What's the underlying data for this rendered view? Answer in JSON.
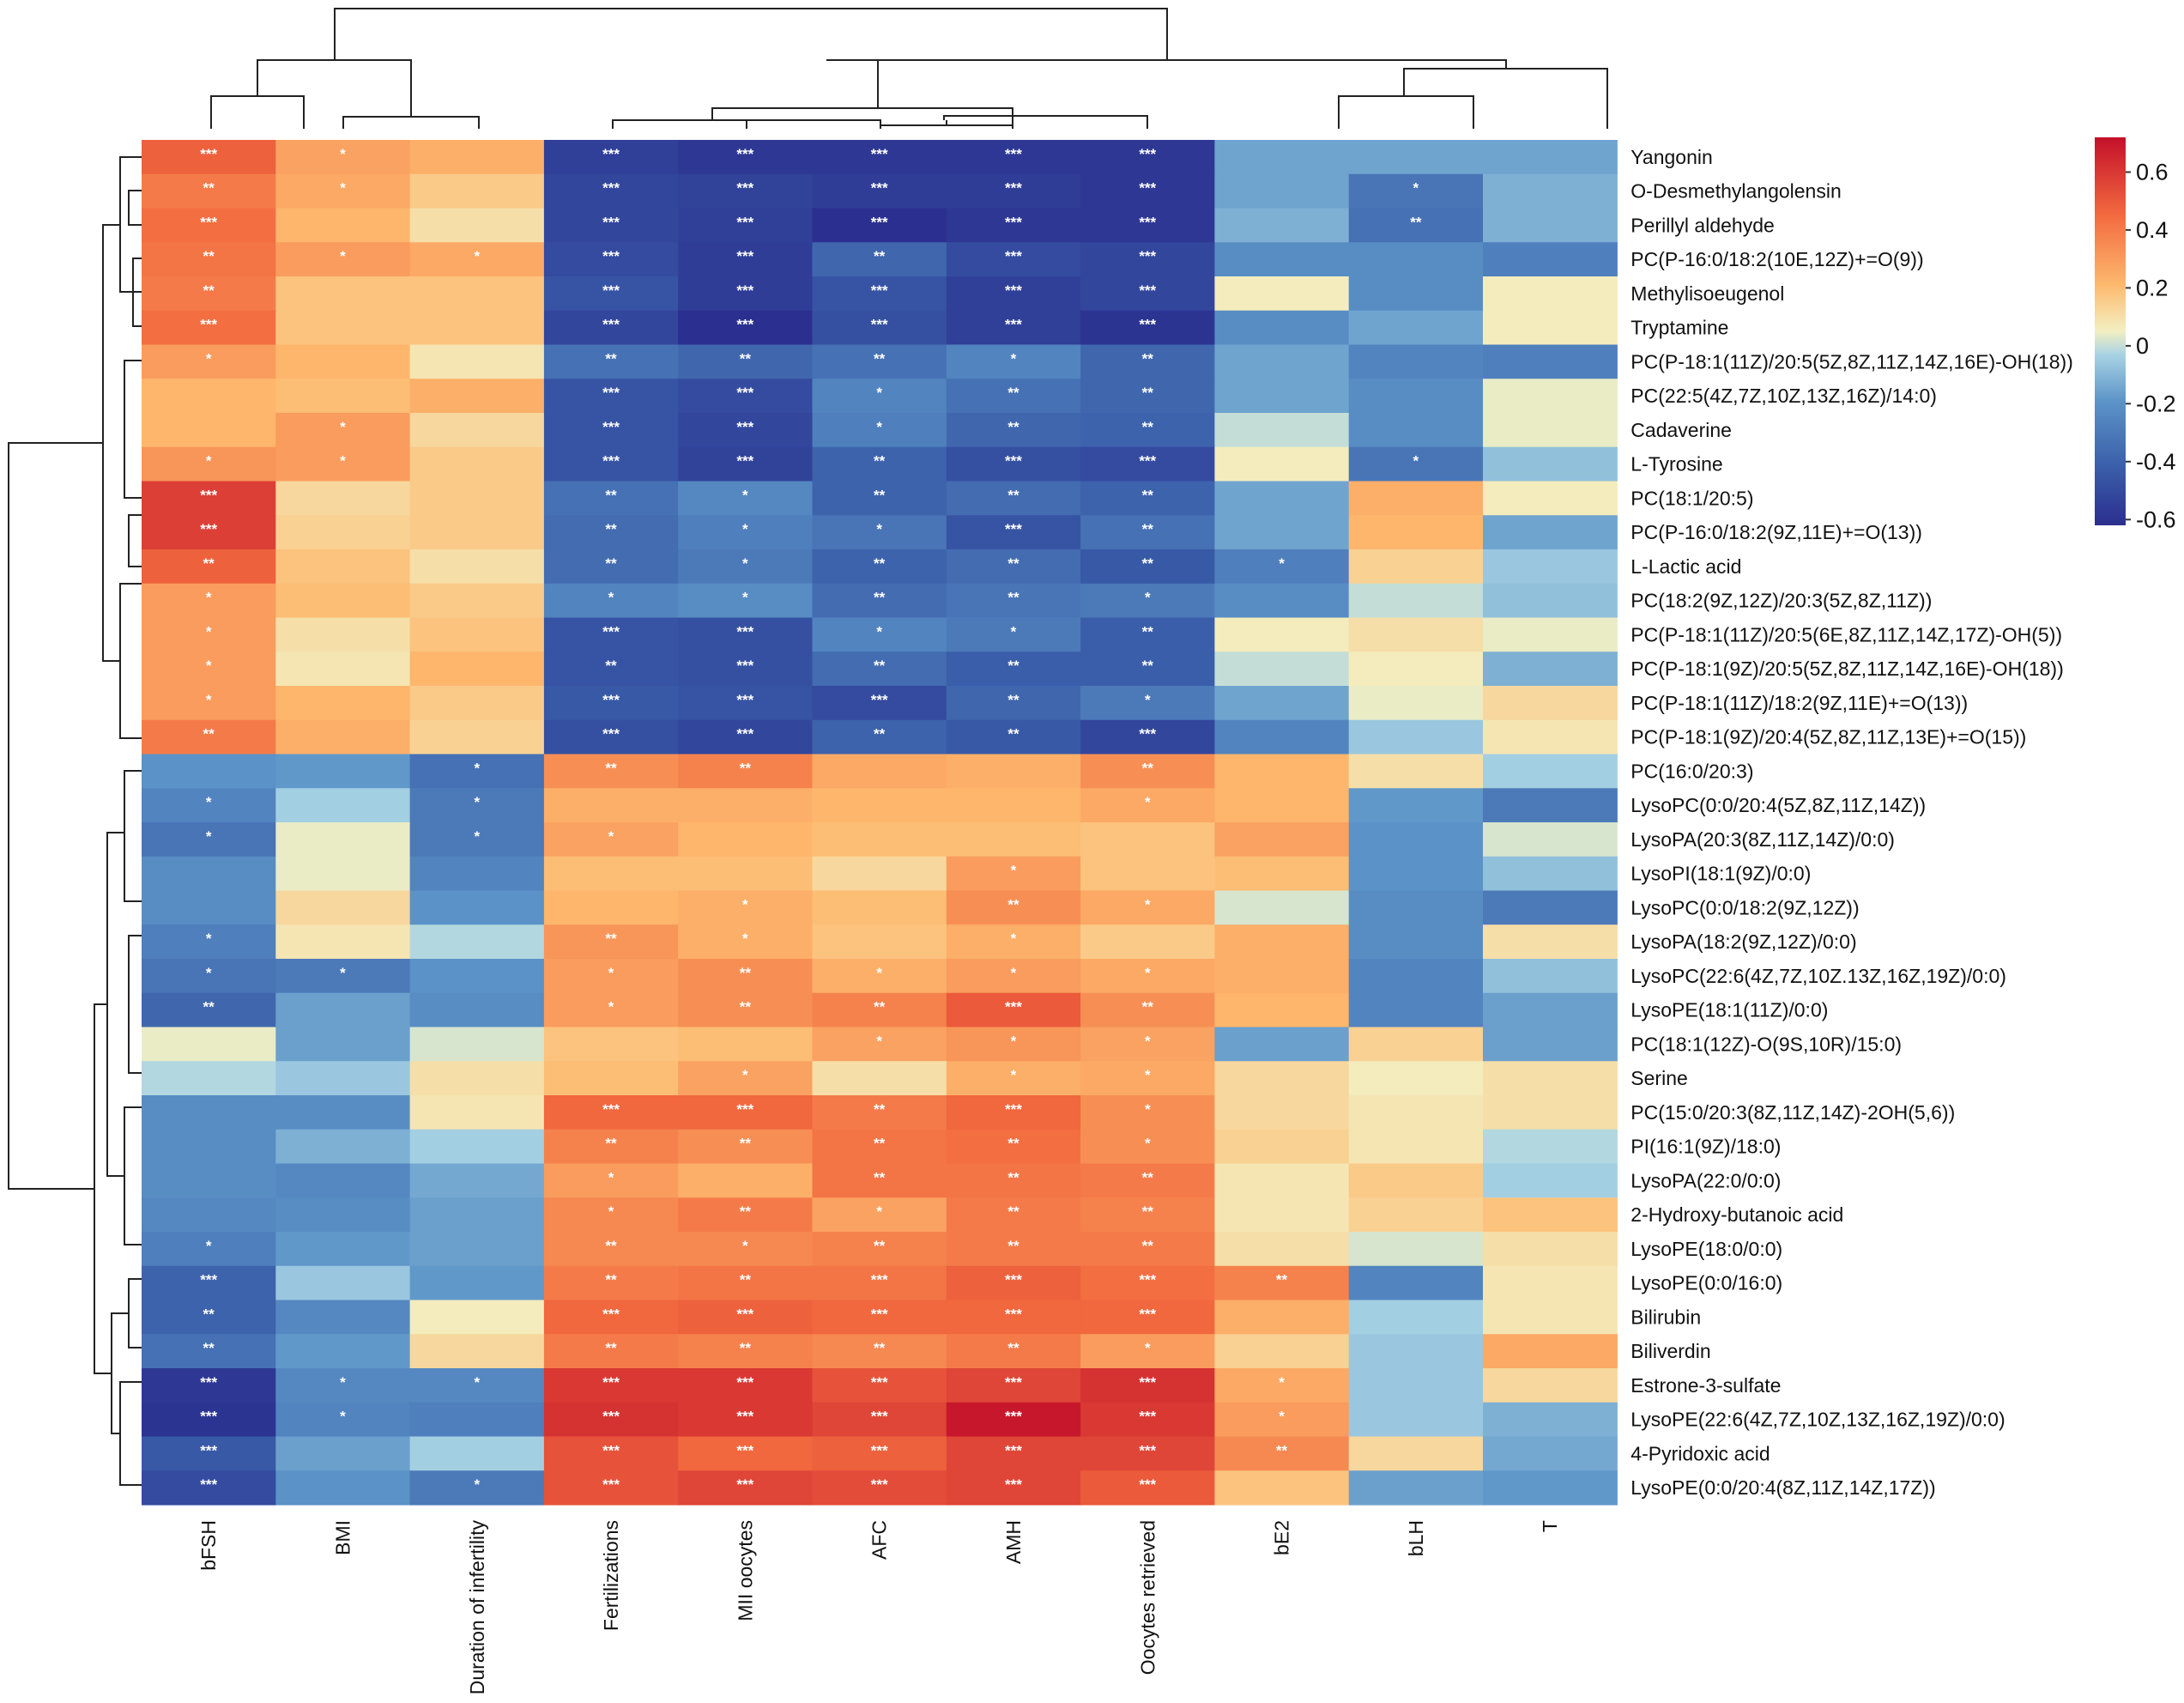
{
  "chart_data": {
    "type": "heatmap",
    "title": "",
    "columns": [
      "bFSH",
      "BMI",
      "Duration of infertility",
      "Fertilizations",
      "MII oocytes",
      "AFC",
      "AMH",
      "Oocytes retrieved",
      "bE2",
      "bLH",
      "T"
    ],
    "rows": [
      "Yangonin",
      "O-Desmethylangolensin",
      "Perillyl aldehyde",
      "PC(P-16:0/18:2(10E,12Z)+=O(9))",
      "Methylisoeugenol",
      "Tryptamine",
      "PC(P-18:1(11Z)/20:5(5Z,8Z,11Z,14Z,16E)-OH(18))",
      "PC(22:5(4Z,7Z,10Z,13Z,16Z)/14:0)",
      "Cadaverine",
      "L-Tyrosine",
      "PC(18:1/20:5)",
      "PC(P-16:0/18:2(9Z,11E)+=O(13))",
      "L-Lactic acid",
      "PC(18:2(9Z,12Z)/20:3(5Z,8Z,11Z))",
      "PC(P-18:1(11Z)/20:5(6E,8Z,11Z,14Z,17Z)-OH(5))",
      "PC(P-18:1(9Z)/20:5(5Z,8Z,11Z,14Z,16E)-OH(18))",
      "PC(P-18:1(11Z)/18:2(9Z,11E)+=O(13))",
      "PC(P-18:1(9Z)/20:4(5Z,8Z,11Z,13E)+=O(15))",
      "PC(16:0/20:3)",
      "LysoPC(0:0/20:4(5Z,8Z,11Z,14Z))",
      "LysoPA(20:3(8Z,11Z,14Z)/0:0)",
      "LysoPI(18:1(9Z)/0:0)",
      "LysoPC(0:0/18:2(9Z,12Z))",
      "LysoPA(18:2(9Z,12Z)/0:0)",
      "LysoPC(22:6(4Z,7Z,10Z.13Z,16Z,19Z)/0:0)",
      "LysoPE(18:1(11Z)/0:0)",
      "PC(18:1(12Z)-O(9S,10R)/15:0)",
      "Serine",
      "PC(15:0/20:3(8Z,11Z,14Z)-2OH(5,6))",
      "PI(16:1(9Z)/18:0)",
      "LysoPA(22:0/0:0)",
      "2-Hydroxy-butanoic acid",
      "LysoPE(18:0/0:0)",
      "LysoPE(0:0/16:0)",
      "Bilirubin",
      "Biliverdin",
      "Estrone-3-sulfate",
      "LysoPE(22:6(4Z,7Z,10Z,13Z,16Z,19Z)/0:0)",
      "4-Pyridoxic acid",
      "LysoPE(0:0/20:4(8Z,11Z,14Z,17Z))"
    ],
    "values": [
      [
        0.48,
        0.28,
        0.24,
        -0.55,
        -0.58,
        -0.58,
        -0.58,
        -0.58,
        -0.15,
        -0.15,
        -0.15
      ],
      [
        0.4,
        0.26,
        0.16,
        -0.52,
        -0.54,
        -0.56,
        -0.56,
        -0.58,
        -0.15,
        -0.32,
        -0.12
      ],
      [
        0.44,
        0.22,
        0.1,
        -0.52,
        -0.55,
        -0.62,
        -0.58,
        -0.58,
        -0.12,
        -0.34,
        -0.12
      ],
      [
        0.42,
        0.3,
        0.26,
        -0.5,
        -0.56,
        -0.38,
        -0.5,
        -0.52,
        -0.22,
        -0.22,
        -0.28
      ],
      [
        0.4,
        0.18,
        0.18,
        -0.46,
        -0.56,
        -0.46,
        -0.55,
        -0.52,
        0.06,
        -0.22,
        0.06
      ],
      [
        0.44,
        0.18,
        0.18,
        -0.52,
        -0.62,
        -0.48,
        -0.55,
        -0.6,
        -0.22,
        -0.15,
        0.06
      ],
      [
        0.3,
        0.22,
        0.08,
        -0.34,
        -0.38,
        -0.34,
        -0.26,
        -0.38,
        -0.15,
        -0.26,
        -0.28
      ],
      [
        0.22,
        0.2,
        0.24,
        -0.46,
        -0.5,
        -0.26,
        -0.34,
        -0.38,
        -0.15,
        -0.22,
        0.04
      ],
      [
        0.22,
        0.3,
        0.12,
        -0.46,
        -0.52,
        -0.28,
        -0.38,
        -0.4,
        0.0,
        -0.22,
        0.04
      ],
      [
        0.32,
        0.3,
        0.16,
        -0.46,
        -0.54,
        -0.4,
        -0.48,
        -0.5,
        0.06,
        -0.32,
        -0.08
      ],
      [
        0.58,
        0.12,
        0.16,
        -0.34,
        -0.24,
        -0.4,
        -0.36,
        -0.4,
        -0.15,
        0.24,
        0.06
      ],
      [
        0.58,
        0.14,
        0.16,
        -0.36,
        -0.28,
        -0.32,
        -0.46,
        -0.34,
        -0.15,
        0.22,
        -0.15
      ],
      [
        0.48,
        0.18,
        0.1,
        -0.36,
        -0.3,
        -0.4,
        -0.36,
        -0.44,
        -0.28,
        0.14,
        -0.06
      ],
      [
        0.3,
        0.2,
        0.16,
        -0.26,
        -0.22,
        -0.36,
        -0.32,
        -0.3,
        -0.22,
        0.0,
        -0.08
      ],
      [
        0.3,
        0.1,
        0.18,
        -0.46,
        -0.48,
        -0.26,
        -0.3,
        -0.42,
        0.06,
        0.1,
        0.04
      ],
      [
        0.3,
        0.08,
        0.22,
        -0.46,
        -0.48,
        -0.36,
        -0.42,
        -0.42,
        0.0,
        0.06,
        -0.12
      ],
      [
        0.3,
        0.22,
        0.16,
        -0.44,
        -0.46,
        -0.5,
        -0.38,
        -0.3,
        -0.15,
        0.04,
        0.12
      ],
      [
        0.4,
        0.24,
        0.14,
        -0.48,
        -0.52,
        -0.4,
        -0.44,
        -0.52,
        -0.26,
        -0.06,
        0.08
      ],
      [
        -0.2,
        -0.18,
        -0.34,
        0.34,
        0.38,
        0.26,
        0.24,
        0.34,
        0.22,
        0.1,
        -0.04
      ],
      [
        -0.26,
        -0.04,
        -0.3,
        0.24,
        0.24,
        0.22,
        0.22,
        0.26,
        0.22,
        -0.18,
        -0.3
      ],
      [
        -0.32,
        0.04,
        -0.3,
        0.28,
        0.22,
        0.2,
        0.2,
        0.18,
        0.28,
        -0.2,
        0.02
      ],
      [
        -0.22,
        0.04,
        -0.26,
        0.2,
        0.2,
        0.12,
        0.3,
        0.18,
        0.2,
        -0.2,
        -0.08
      ],
      [
        -0.22,
        0.12,
        -0.2,
        0.22,
        0.24,
        0.2,
        0.34,
        0.26,
        0.02,
        -0.22,
        -0.3
      ],
      [
        -0.28,
        0.08,
        -0.02,
        0.32,
        0.24,
        0.18,
        0.24,
        0.16,
        0.24,
        -0.22,
        0.1
      ],
      [
        -0.32,
        -0.3,
        -0.2,
        0.3,
        0.34,
        0.24,
        0.3,
        0.26,
        0.24,
        -0.26,
        -0.08
      ],
      [
        -0.38,
        -0.16,
        -0.22,
        0.3,
        0.34,
        0.38,
        0.5,
        0.34,
        0.22,
        -0.26,
        -0.16
      ],
      [
        0.04,
        -0.16,
        0.02,
        0.18,
        0.2,
        0.28,
        0.32,
        0.28,
        -0.16,
        0.14,
        -0.16
      ],
      [
        -0.02,
        -0.06,
        0.1,
        0.2,
        0.28,
        0.1,
        0.24,
        0.26,
        0.12,
        0.06,
        0.1
      ],
      [
        -0.22,
        -0.22,
        0.08,
        0.46,
        0.46,
        0.4,
        0.46,
        0.34,
        0.12,
        0.08,
        0.1
      ],
      [
        -0.22,
        -0.12,
        -0.04,
        0.38,
        0.34,
        0.42,
        0.44,
        0.34,
        0.14,
        0.08,
        -0.02
      ],
      [
        -0.22,
        -0.24,
        -0.14,
        0.3,
        0.24,
        0.42,
        0.42,
        0.4,
        0.08,
        0.16,
        -0.04
      ],
      [
        -0.24,
        -0.22,
        -0.16,
        0.36,
        0.4,
        0.28,
        0.4,
        0.38,
        0.08,
        0.14,
        0.18
      ],
      [
        -0.28,
        -0.18,
        -0.16,
        0.36,
        0.36,
        0.38,
        0.4,
        0.4,
        0.1,
        0.02,
        0.1
      ],
      [
        -0.4,
        -0.06,
        -0.18,
        0.4,
        0.42,
        0.42,
        0.48,
        0.44,
        0.38,
        -0.26,
        0.08
      ],
      [
        -0.4,
        -0.24,
        0.06,
        0.46,
        0.48,
        0.46,
        0.46,
        0.46,
        0.24,
        -0.04,
        0.08
      ],
      [
        -0.34,
        -0.18,
        0.12,
        0.4,
        0.38,
        0.36,
        0.4,
        0.3,
        0.14,
        -0.06,
        0.26
      ],
      [
        -0.58,
        -0.24,
        -0.24,
        0.6,
        0.6,
        0.52,
        0.56,
        0.62,
        0.26,
        -0.06,
        0.12
      ],
      [
        -0.6,
        -0.26,
        -0.28,
        0.62,
        0.6,
        0.56,
        0.7,
        0.6,
        0.3,
        -0.06,
        -0.12
      ],
      [
        -0.44,
        -0.16,
        -0.04,
        0.52,
        0.46,
        0.48,
        0.56,
        0.56,
        0.36,
        0.12,
        -0.14
      ],
      [
        -0.5,
        -0.2,
        -0.3,
        0.52,
        0.56,
        0.54,
        0.56,
        0.5,
        0.18,
        -0.16,
        -0.18
      ]
    ],
    "significance": [
      [
        "***",
        "*",
        "",
        "***",
        "***",
        "***",
        "***",
        "***",
        "",
        "",
        ""
      ],
      [
        "**",
        "*",
        "",
        "***",
        "***",
        "***",
        "***",
        "***",
        "",
        "*",
        ""
      ],
      [
        "***",
        "",
        "",
        "***",
        "***",
        "***",
        "***",
        "***",
        "",
        "**",
        ""
      ],
      [
        "**",
        "*",
        "*",
        "***",
        "***",
        "**",
        "***",
        "***",
        "",
        "",
        ""
      ],
      [
        "**",
        "",
        "",
        "***",
        "***",
        "***",
        "***",
        "***",
        "",
        "",
        ""
      ],
      [
        "***",
        "",
        "",
        "***",
        "***",
        "***",
        "***",
        "***",
        "",
        "",
        ""
      ],
      [
        "*",
        "",
        "",
        "**",
        "**",
        "**",
        "*",
        "**",
        "",
        "",
        ""
      ],
      [
        "",
        "",
        "",
        "***",
        "***",
        "*",
        "**",
        "**",
        "",
        "",
        ""
      ],
      [
        "",
        "*",
        "",
        "***",
        "***",
        "*",
        "**",
        "**",
        "",
        "",
        ""
      ],
      [
        "*",
        "*",
        "",
        "***",
        "***",
        "**",
        "***",
        "***",
        "",
        "*",
        ""
      ],
      [
        "***",
        "",
        "",
        "**",
        "*",
        "**",
        "**",
        "**",
        "",
        "",
        ""
      ],
      [
        "***",
        "",
        "",
        "**",
        "*",
        "*",
        "***",
        "**",
        "",
        "",
        ""
      ],
      [
        "**",
        "",
        "",
        "**",
        "*",
        "**",
        "**",
        "**",
        "*",
        "",
        ""
      ],
      [
        "*",
        "",
        "",
        "*",
        "*",
        "**",
        "**",
        "*",
        "",
        "",
        ""
      ],
      [
        "*",
        "",
        "",
        "***",
        "***",
        "*",
        "*",
        "**",
        "",
        "",
        ""
      ],
      [
        "*",
        "",
        "",
        "**",
        "***",
        "**",
        "**",
        "**",
        "",
        "",
        ""
      ],
      [
        "*",
        "",
        "",
        "***",
        "***",
        "***",
        "**",
        "*",
        "",
        "",
        ""
      ],
      [
        "**",
        "",
        "",
        "***",
        "***",
        "**",
        "**",
        "***",
        "",
        "",
        ""
      ],
      [
        "",
        "",
        "*",
        "**",
        "**",
        "",
        "",
        "**",
        "",
        "",
        ""
      ],
      [
        "*",
        "",
        "*",
        "",
        "",
        "",
        "",
        "*",
        "",
        "",
        ""
      ],
      [
        "*",
        "",
        "*",
        "*",
        "",
        "",
        "",
        "",
        "",
        "",
        ""
      ],
      [
        "",
        "",
        "",
        "",
        "",
        "",
        "*",
        "",
        "",
        "",
        ""
      ],
      [
        "",
        "",
        "",
        "",
        "*",
        "",
        "**",
        "*",
        "",
        "",
        ""
      ],
      [
        "*",
        "",
        "",
        "**",
        "*",
        "",
        "*",
        "",
        "",
        "",
        ""
      ],
      [
        "*",
        "*",
        "",
        "*",
        "**",
        "*",
        "*",
        "*",
        "",
        "",
        ""
      ],
      [
        "**",
        "",
        "",
        "*",
        "**",
        "**",
        "***",
        "**",
        "",
        "",
        ""
      ],
      [
        "",
        "",
        "",
        "",
        "",
        "*",
        "*",
        "*",
        "",
        "",
        ""
      ],
      [
        "",
        "",
        "",
        "",
        "*",
        "",
        "*",
        "*",
        "",
        "",
        ""
      ],
      [
        "",
        "",
        "",
        "***",
        "***",
        "**",
        "***",
        "*",
        "",
        "",
        ""
      ],
      [
        "",
        "",
        "",
        "**",
        "**",
        "**",
        "**",
        "*",
        "",
        "",
        ""
      ],
      [
        "",
        "",
        "",
        "*",
        "",
        "**",
        "**",
        "**",
        "",
        "",
        ""
      ],
      [
        "",
        "",
        "",
        "*",
        "**",
        "*",
        "**",
        "**",
        "",
        "",
        ""
      ],
      [
        "*",
        "",
        "",
        "**",
        "*",
        "**",
        "**",
        "**",
        "",
        "",
        ""
      ],
      [
        "***",
        "",
        "",
        "**",
        "**",
        "***",
        "***",
        "***",
        "**",
        "",
        ""
      ],
      [
        "**",
        "",
        "",
        "***",
        "***",
        "***",
        "***",
        "***",
        "",
        "",
        ""
      ],
      [
        "**",
        "",
        "",
        "**",
        "**",
        "**",
        "**",
        "*",
        "",
        "",
        ""
      ],
      [
        "***",
        "*",
        "*",
        "***",
        "***",
        "***",
        "***",
        "***",
        "*",
        "",
        ""
      ],
      [
        "***",
        "*",
        "",
        "***",
        "***",
        "***",
        "***",
        "***",
        "*",
        "",
        ""
      ],
      [
        "***",
        "",
        "",
        "***",
        "***",
        "***",
        "***",
        "***",
        "**",
        "",
        ""
      ],
      [
        "***",
        "",
        "*",
        "***",
        "***",
        "***",
        "***",
        "***",
        "",
        "",
        ""
      ]
    ],
    "colorbar": {
      "ticks": [
        "0.6",
        "0.4",
        "0.2",
        "0",
        "-0.2",
        "-0.4",
        "-0.6"
      ],
      "tick_values": [
        0.6,
        0.4,
        0.2,
        0,
        -0.2,
        -0.4,
        -0.6
      ],
      "range": [
        -0.62,
        0.72
      ],
      "colors": [
        "#2b2f8f",
        "#3a5ea9",
        "#5c94c8",
        "#a8d3e4",
        "#f3efc2",
        "#fdb96e",
        "#f26a3f",
        "#c4102a"
      ]
    }
  }
}
